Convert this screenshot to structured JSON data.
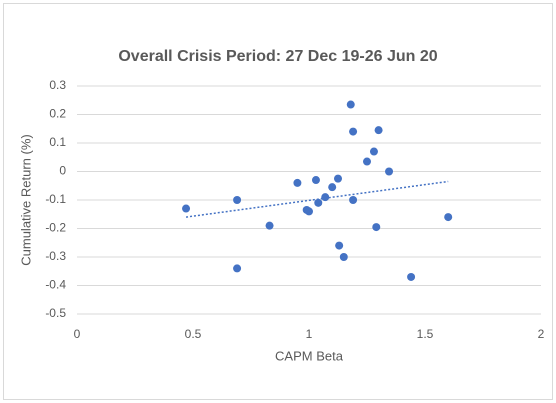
{
  "chart_data": {
    "type": "scatter",
    "title": "Overall Crisis Period: 27 Dec 19-26 Jun 20",
    "x_label": "CAPM Beta",
    "y_label": "Cumulative Return (%)",
    "series": [
      {
        "color": "#4472c4",
        "x": [
          0.47,
          0.69,
          0.69,
          0.83,
          0.95,
          0.99,
          1.0,
          1.03,
          1.04,
          1.07,
          1.1,
          1.125,
          1.13,
          1.15,
          1.18,
          1.19,
          1.19,
          1.25,
          1.28,
          1.3,
          1.29,
          1.345,
          1.44,
          1.6
        ],
        "values": [
          -0.13,
          -0.1,
          -0.34,
          -0.19,
          -0.04,
          -0.135,
          -0.14,
          -0.03,
          -0.11,
          -0.09,
          -0.055,
          -0.025,
          -0.26,
          -0.3,
          0.235,
          0.14,
          -0.1,
          0.035,
          0.07,
          0.145,
          -0.195,
          0.0,
          -0.37,
          -0.16
        ]
      }
    ],
    "trendline": {
      "color": "#4472c4",
      "x": [
        0.47,
        1.6
      ],
      "values": [
        -0.16,
        -0.035
      ]
    },
    "xlim": [
      0,
      2
    ],
    "xticks": [
      0,
      0.5,
      1,
      1.5,
      2
    ],
    "ylim": [
      -0.5,
      0.3
    ],
    "yticks": [
      0.3,
      0.2,
      0.1,
      0,
      -0.1,
      -0.2,
      -0.3,
      -0.4,
      -0.5
    ],
    "grid": true
  }
}
